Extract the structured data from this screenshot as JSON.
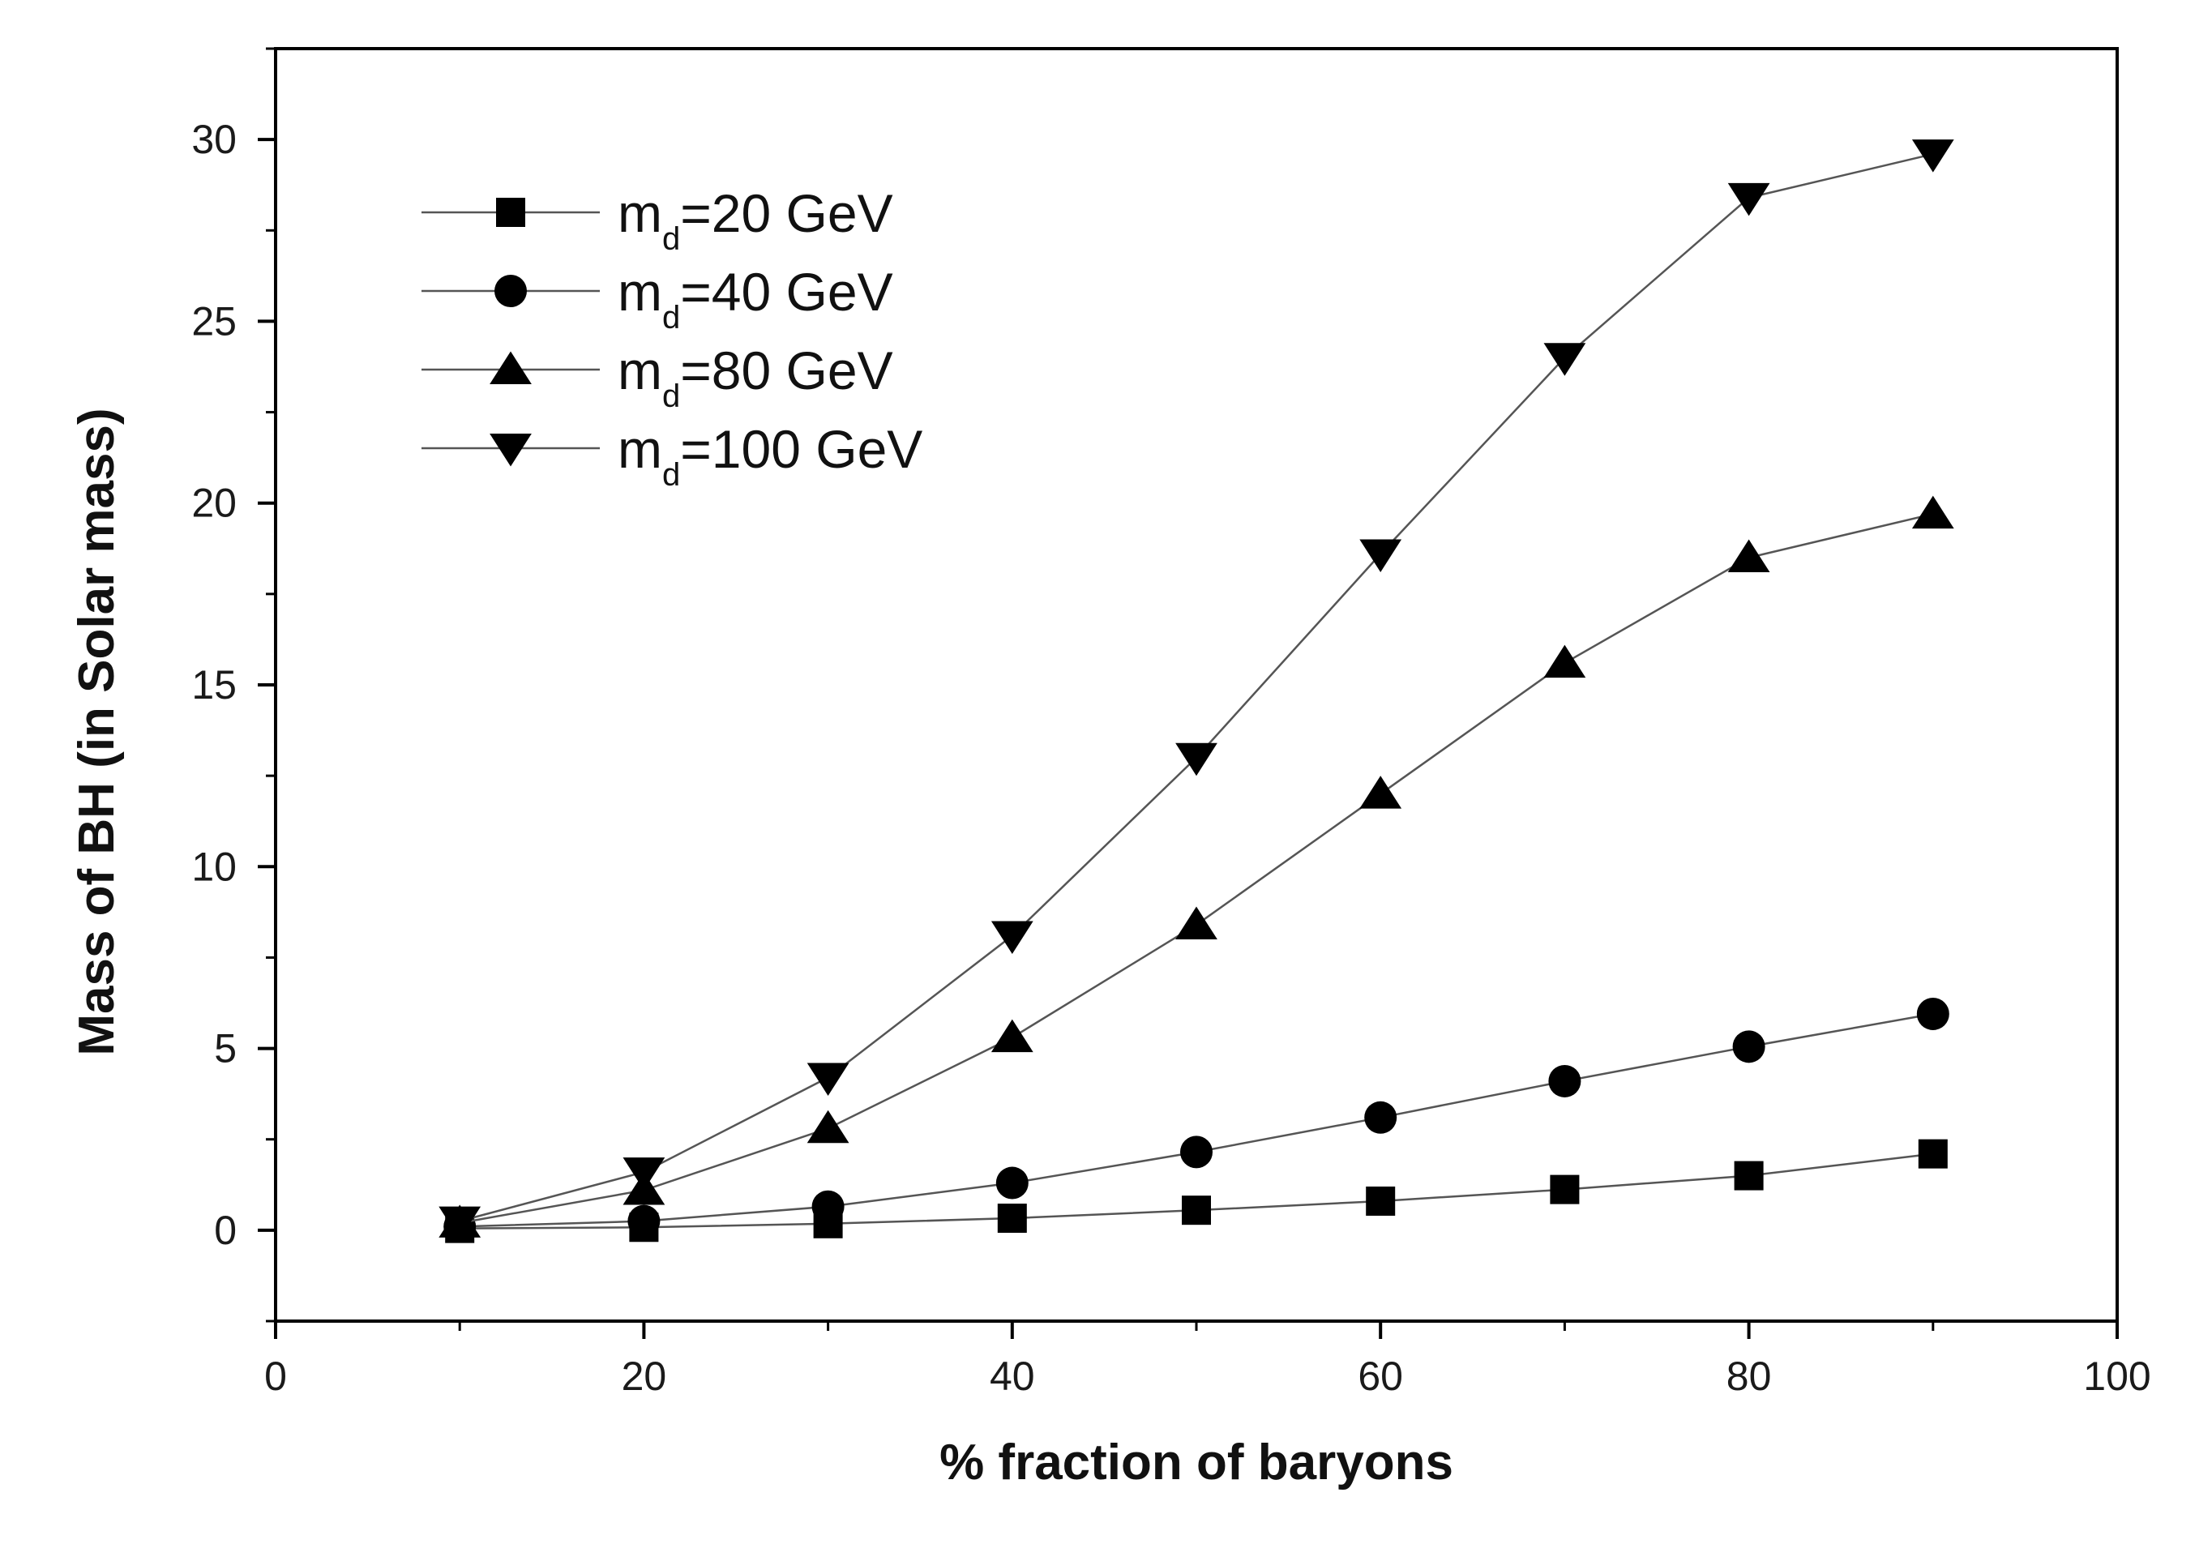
{
  "chart_data": {
    "type": "line",
    "xlabel": "% fraction of baryons",
    "ylabel": "Mass of BH (in Solar mass)",
    "xlim": [
      0,
      100
    ],
    "ylim": [
      -2.5,
      32.5
    ],
    "xticks": [
      0,
      20,
      40,
      60,
      80,
      100
    ],
    "yticks": [
      0,
      5,
      10,
      15,
      20,
      25,
      30
    ],
    "grid": false,
    "legend_position": "top-left",
    "x": [
      10,
      20,
      30,
      40,
      50,
      60,
      70,
      80,
      90
    ],
    "series": [
      {
        "name_prefix": "m",
        "name_subscript": "d",
        "name_suffix": "=20 GeV",
        "marker": "square",
        "values": [
          0.05,
          0.08,
          0.18,
          0.33,
          0.55,
          0.8,
          1.12,
          1.5,
          2.1
        ]
      },
      {
        "name_prefix": "m",
        "name_subscript": "d",
        "name_suffix": "=40 GeV",
        "marker": "circle",
        "values": [
          0.1,
          0.25,
          0.65,
          1.3,
          2.15,
          3.1,
          4.1,
          5.05,
          5.95
        ]
      },
      {
        "name_prefix": "m",
        "name_subscript": "d",
        "name_suffix": "=80 GeV",
        "marker": "triangle-up",
        "values": [
          0.2,
          1.1,
          2.8,
          5.3,
          8.4,
          12.0,
          15.6,
          18.5,
          19.7
        ]
      },
      {
        "name_prefix": "m",
        "name_subscript": "d",
        "name_suffix": "=100 GeV",
        "marker": "triangle-down",
        "values": [
          0.25,
          1.6,
          4.2,
          8.1,
          13.0,
          18.6,
          24.0,
          28.4,
          29.6
        ]
      }
    ],
    "line_color": "#555555",
    "marker_color": "#000000"
  }
}
